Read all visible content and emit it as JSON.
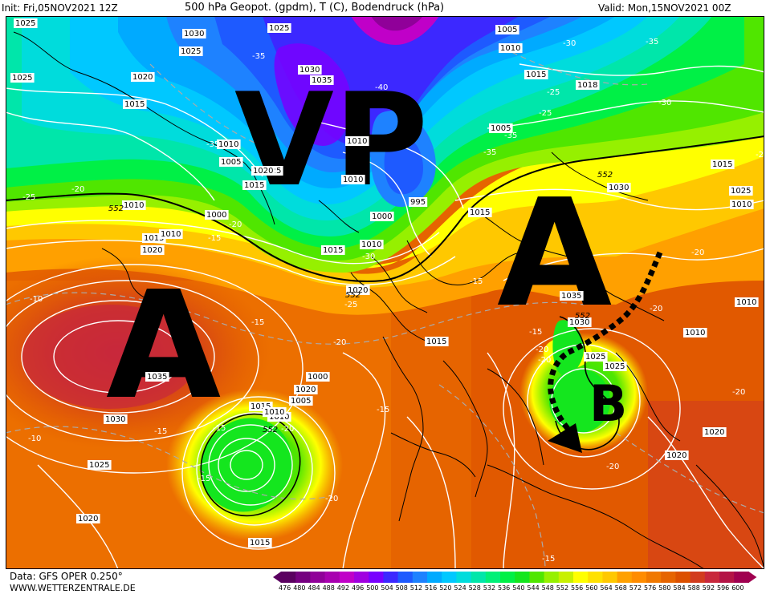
{
  "header": {
    "init": "Init: Fri,05NOV2021 12Z",
    "title": "500 hPa Geopot. (gpdm), T (C), Bodendruck (hPa)",
    "valid": "Valid: Mon,15NOV2021 00Z"
  },
  "footer": {
    "source": "Data: GFS OPER 0.250°",
    "website": "WWW.WETTERZENTRALE.DE"
  },
  "annotations": {
    "vp": "VP",
    "a_left": "A",
    "a_right": "A",
    "b": "B"
  },
  "legend": {
    "values": [
      "476",
      "480",
      "484",
      "488",
      "492",
      "496",
      "500",
      "504",
      "508",
      "512",
      "516",
      "520",
      "524",
      "528",
      "532",
      "536",
      "540",
      "544",
      "548",
      "552",
      "556",
      "560",
      "564",
      "568",
      "572",
      "576",
      "580",
      "584",
      "588",
      "592",
      "596",
      "600"
    ],
    "colors": [
      "#5a0060",
      "#750080",
      "#900099",
      "#a800b0",
      "#c000c8",
      "#a000e0",
      "#7800ff",
      "#3c28ff",
      "#1e5aff",
      "#1e82ff",
      "#00aaff",
      "#00c8ff",
      "#00dcdc",
      "#00e6aa",
      "#00f078",
      "#00f046",
      "#14e61e",
      "#50e600",
      "#96f000",
      "#c8f000",
      "#ffff00",
      "#ffe100",
      "#ffc800",
      "#ffa000",
      "#ff8c00",
      "#f07800",
      "#e66400",
      "#dc5000",
      "#d23c1e",
      "#c8283c",
      "#b41446",
      "#a00050"
    ]
  },
  "pressure_labels": [
    {
      "t": "1025"
    },
    {
      "t": "1030"
    },
    {
      "t": "1025"
    },
    {
      "t": "1025"
    },
    {
      "t": "1005"
    },
    {
      "t": "1010"
    },
    {
      "t": "1020"
    },
    {
      "t": "1015"
    },
    {
      "t": "1030"
    },
    {
      "t": "1035"
    },
    {
      "t": "1005"
    },
    {
      "t": "1015"
    },
    {
      "t": "1018"
    },
    {
      "t": "1010"
    },
    {
      "t": "1005"
    },
    {
      "t": "1025"
    },
    {
      "t": "1015"
    },
    {
      "t": "1020"
    },
    {
      "t": "1010"
    },
    {
      "t": "1010"
    },
    {
      "t": "1030"
    },
    {
      "t": "1025"
    },
    {
      "t": "995"
    },
    {
      "t": "1000"
    },
    {
      "t": "1010"
    },
    {
      "t": "1015"
    },
    {
      "t": "1015"
    },
    {
      "t": "1010"
    },
    {
      "t": "1000"
    },
    {
      "t": "1010"
    },
    {
      "t": "1015"
    },
    {
      "t": "1020"
    },
    {
      "t": "1020"
    },
    {
      "t": "1035"
    },
    {
      "t": "1030"
    },
    {
      "t": "1025"
    },
    {
      "t": "1015"
    },
    {
      "t": "1035"
    },
    {
      "t": "1030"
    },
    {
      "t": "1025"
    },
    {
      "t": "1020"
    },
    {
      "t": "1015"
    },
    {
      "t": "1020"
    },
    {
      "t": "1015"
    },
    {
      "t": "1010"
    },
    {
      "t": "1005"
    },
    {
      "t": "1000"
    },
    {
      "t": "1010"
    },
    {
      "t": "1025"
    },
    {
      "t": "1020"
    },
    {
      "t": "1020"
    },
    {
      "t": "1010"
    },
    {
      "t": "1010"
    },
    {
      "t": "1010"
    },
    {
      "t": "1015"
    },
    {
      "t": "1025"
    }
  ],
  "temp_labels": [
    {
      "t": "-35"
    },
    {
      "t": "-35"
    },
    {
      "t": "-40"
    },
    {
      "t": "-35"
    },
    {
      "t": "-35"
    },
    {
      "t": "-30"
    },
    {
      "t": "-30"
    },
    {
      "t": "-25"
    },
    {
      "t": "-25"
    },
    {
      "t": "-20"
    },
    {
      "t": "-25"
    },
    {
      "t": "-20"
    },
    {
      "t": "-15"
    },
    {
      "t": "-30"
    },
    {
      "t": "-25"
    },
    {
      "t": "-15"
    },
    {
      "t": "-20"
    },
    {
      "t": "-20"
    },
    {
      "t": "-10"
    },
    {
      "t": "-15"
    },
    {
      "t": "-20"
    },
    {
      "t": "-15"
    },
    {
      "t": "-15"
    },
    {
      "t": "-20"
    },
    {
      "t": "-15"
    },
    {
      "t": "-10"
    },
    {
      "t": "-15"
    },
    {
      "t": "-15"
    },
    {
      "t": "-20"
    },
    {
      "t": "-20"
    },
    {
      "t": "-20"
    },
    {
      "t": "-20"
    },
    {
      "t": "-15"
    },
    {
      "t": "-20"
    },
    {
      "t": "-2"
    },
    {
      "t": "-35"
    }
  ],
  "geopot_labels": [
    {
      "t": "552"
    },
    {
      "t": "552"
    },
    {
      "t": "552"
    },
    {
      "t": "552"
    },
    {
      "t": "552"
    }
  ]
}
